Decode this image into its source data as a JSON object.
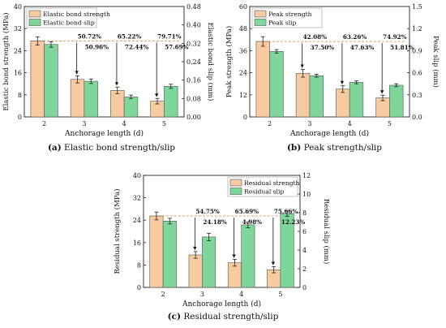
{
  "colors": {
    "strength": "#f8caa0",
    "slip": "#7ed69a",
    "bar_stroke": "#555555",
    "refline": "#d9a26b",
    "axis": "#222222"
  },
  "chart_data": [
    {
      "id": "a",
      "type": "bar",
      "caption_letter": "(a)",
      "caption_text": "Elastic bond strength/slip",
      "xlabel": "Anchorage length (d)",
      "ylabel_left": "Elastic bond strength (MPa)",
      "ylabel_right": "Elastic bond slip (mm)",
      "categories": [
        "2",
        "3",
        "4",
        "5"
      ],
      "yleft_lim": [
        0,
        40
      ],
      "yleft_ticks": [
        "0",
        "8",
        "16",
        "24",
        "32",
        "40"
      ],
      "yright_lim": [
        0,
        0.48
      ],
      "yright_ticks": [
        "0.00",
        "0.08",
        "0.16",
        "0.24",
        "0.32",
        "0.40",
        "0.48"
      ],
      "legend_position": "top-left",
      "series": [
        {
          "name": "Elastic bond strength",
          "axis": "left",
          "values": [
            27.5,
            13.6,
            9.6,
            5.7
          ],
          "errors": [
            1.5,
            1.3,
            1.2,
            1.0
          ]
        },
        {
          "name": "Elastic bond slip",
          "axis": "right",
          "values": [
            0.315,
            0.155,
            0.087,
            0.133
          ],
          "errors": [
            0.012,
            0.01,
            0.008,
            0.009
          ]
        }
      ],
      "annotations": {
        "strength_pct": [
          "50.72%",
          "65.22%",
          "79.71%"
        ],
        "slip_pct": [
          "50.96%",
          "72.44%",
          "57.69%"
        ]
      }
    },
    {
      "id": "b",
      "type": "bar",
      "caption_letter": "(b)",
      "caption_text": "Peak strength/slip",
      "xlabel": "Anchorage length (d)",
      "ylabel_left": "Peak strength (MPa)",
      "ylabel_right": "Peak slip (mm)",
      "categories": [
        "2",
        "3",
        "4",
        "5"
      ],
      "yleft_lim": [
        0,
        60
      ],
      "yleft_ticks": [
        "0",
        "12",
        "24",
        "36",
        "48",
        "60"
      ],
      "yright_lim": [
        0,
        1.5
      ],
      "yright_ticks": [
        "0.0",
        "0.3",
        "0.6",
        "0.9",
        "1.2",
        "1.5"
      ],
      "legend_position": "top-left",
      "series": [
        {
          "name": "Peak strength",
          "axis": "left",
          "values": [
            41.0,
            23.7,
            15.1,
            10.3
          ],
          "errors": [
            2.6,
            2.1,
            1.8,
            1.5
          ]
        },
        {
          "name": "Peak slip",
          "axis": "right",
          "values": [
            0.89,
            0.56,
            0.47,
            0.43
          ],
          "errors": [
            0.025,
            0.02,
            0.02,
            0.02
          ]
        }
      ],
      "annotations": {
        "strength_pct": [
          "42.08%",
          "63.26%",
          "74.92%"
        ],
        "slip_pct": [
          "37.50%",
          "47.63%",
          "51.81%"
        ]
      }
    },
    {
      "id": "c",
      "type": "bar",
      "caption_letter": "(c)",
      "caption_text": "Residual strength/slip",
      "xlabel": "Anchorage length (d)",
      "ylabel_left": "Residual strength (MPa)",
      "ylabel_right": "Residual slip (mm)",
      "categories": [
        "2",
        "3",
        "4",
        "5"
      ],
      "yleft_lim": [
        0,
        40
      ],
      "yleft_ticks": [
        "0",
        "8",
        "16",
        "24",
        "32",
        "40"
      ],
      "yright_lim": [
        0,
        12
      ],
      "yright_ticks": [
        "0",
        "2",
        "4",
        "6",
        "8",
        "10",
        "12"
      ],
      "legend_position": "top-right",
      "series": [
        {
          "name": "Residual strength",
          "axis": "left",
          "values": [
            25.5,
            11.6,
            8.8,
            6.3
          ],
          "errors": [
            1.4,
            1.2,
            1.2,
            1.1
          ]
        },
        {
          "name": "Residual slip",
          "axis": "right",
          "values": [
            7.1,
            5.4,
            6.7,
            7.9
          ],
          "errors": [
            0.3,
            0.4,
            0.3,
            0.3
          ]
        }
      ],
      "annotations": {
        "strength_pct": [
          "54.75%",
          "65.69%",
          "75.66%"
        ],
        "slip_pct": [
          "24.18%",
          "4.98%",
          "12.23%"
        ]
      }
    }
  ]
}
